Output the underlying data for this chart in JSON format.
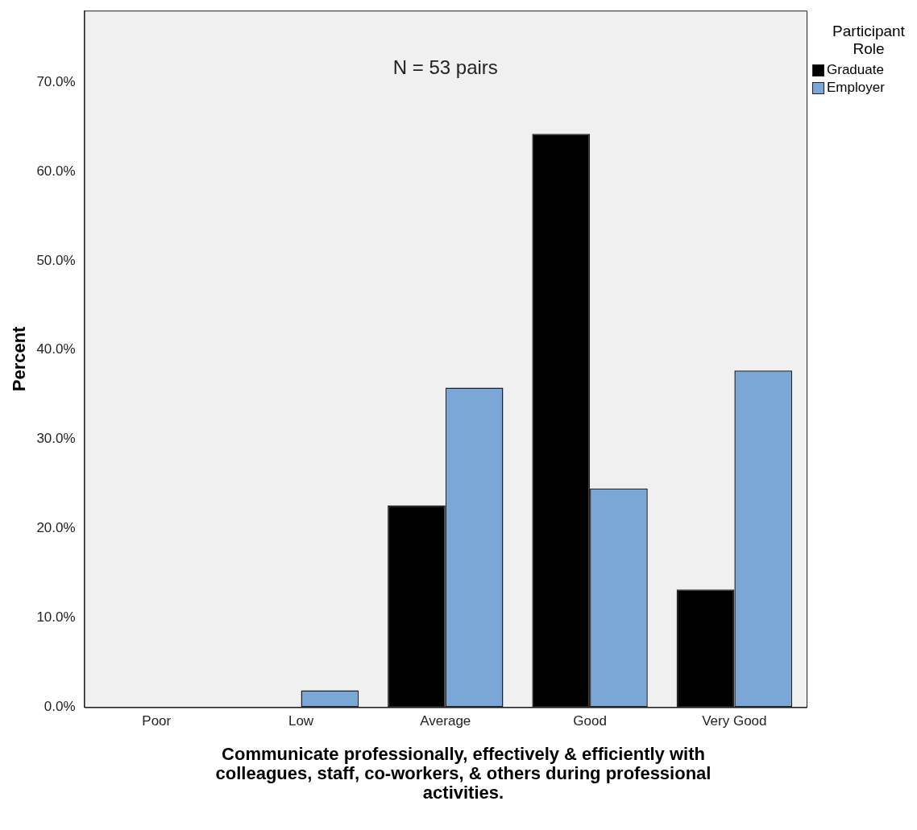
{
  "chart_data": {
    "type": "bar",
    "xlabel": "Communicate professionally, effectively & efficiently with colleagues, staff, co-workers, & others during professional activities.",
    "ylabel": "Percent",
    "legend_title": "Participant Role",
    "annotations": [
      "N = 53 pairs"
    ],
    "categories": [
      "Poor",
      "Low",
      "Average",
      "Good",
      "Very Good"
    ],
    "series": [
      {
        "name": "Graduate",
        "color": "#000000",
        "values": [
          0,
          0,
          22.6,
          64.2,
          13.2
        ]
      },
      {
        "name": "Employer",
        "color": "#7ba7d6",
        "values": [
          0,
          1.9,
          35.8,
          24.5,
          37.7
        ]
      }
    ],
    "ylim": [
      0,
      78
    ],
    "yticks": [
      {
        "value": 0,
        "label": "0.0%"
      },
      {
        "value": 10,
        "label": "10.0%"
      },
      {
        "value": 20,
        "label": "20.0%"
      },
      {
        "value": 30,
        "label": "30.0%"
      },
      {
        "value": 40,
        "label": "40.0%"
      },
      {
        "value": 50,
        "label": "50.0%"
      },
      {
        "value": 60,
        "label": "60.0%"
      },
      {
        "value": 70,
        "label": "70.0%"
      }
    ],
    "grid": false,
    "legend": "top right"
  }
}
